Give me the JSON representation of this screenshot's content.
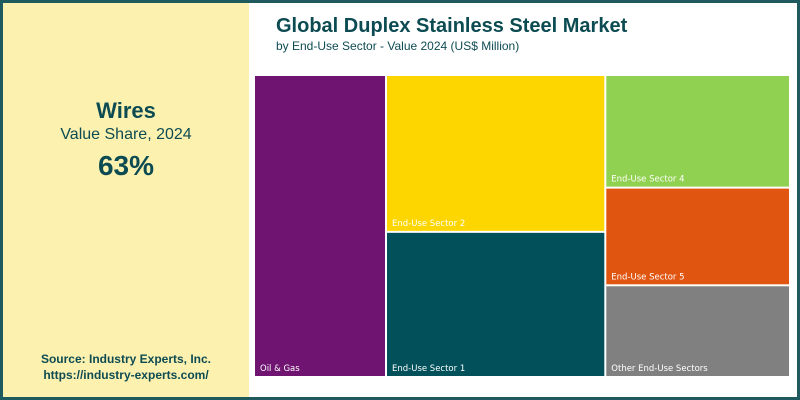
{
  "highlight": {
    "segment": "Wires",
    "subtitle": "Value Share, 2024",
    "value": "63%"
  },
  "source": {
    "line1": "Source: Industry Experts, Inc.",
    "line2": "https://industry-experts.com/"
  },
  "colors": {
    "frame": "#1f5a5e",
    "left_panel": "#fdf1b0",
    "text_dark": "#0d4b52"
  },
  "chart_data": {
    "type": "treemap",
    "title": "Global Duplex Stainless Steel Market",
    "subtitle": "by End-Use Sector - Value 2024 (US$ Million)",
    "tiles": [
      {
        "label": "Oil & Gas",
        "share": 0.23,
        "color": "#701471"
      },
      {
        "label": "End-Use Sector 2",
        "share": 0.2,
        "color": "#fdd600"
      },
      {
        "label": "End-Use Sector 1",
        "share": 0.185,
        "color": "#01505a"
      },
      {
        "label": "End-Use Sector 4",
        "share": 0.12,
        "color": "#91d151"
      },
      {
        "label": "End-Use Sector 5",
        "share": 0.105,
        "color": "#e05510"
      },
      {
        "label": "Other End-Use Sectors",
        "share": 0.0975,
        "color": "#808080"
      }
    ]
  }
}
